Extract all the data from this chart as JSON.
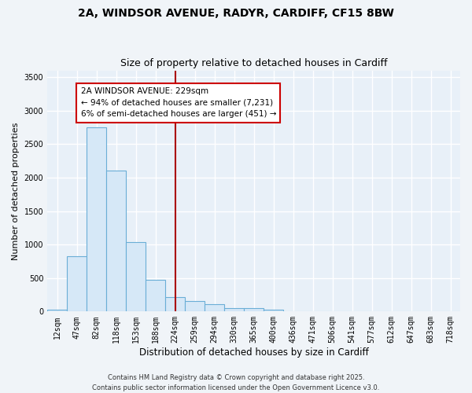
{
  "title_line1": "2A, WINDSOR AVENUE, RADYR, CARDIFF, CF15 8BW",
  "title_line2": "Size of property relative to detached houses in Cardiff",
  "xlabel": "Distribution of detached houses by size in Cardiff",
  "ylabel": "Number of detached properties",
  "bar_color": "#d6e8f7",
  "bar_edgecolor": "#6aaed6",
  "bar_linewidth": 0.8,
  "background_color": "#e8f0f8",
  "fig_background": "#f0f4f8",
  "grid_color": "#ffffff",
  "vline_color": "#aa0000",
  "annotation_text": "2A WINDSOR AVENUE: 229sqm\n← 94% of detached houses are smaller (7,231)\n6% of semi-detached houses are larger (451) →",
  "annotation_box_color": "#ffffff",
  "annotation_box_edgecolor": "#cc0000",
  "categories": [
    "12sqm",
    "47sqm",
    "82sqm",
    "118sqm",
    "153sqm",
    "188sqm",
    "224sqm",
    "259sqm",
    "294sqm",
    "330sqm",
    "365sqm",
    "400sqm",
    "436sqm",
    "471sqm",
    "506sqm",
    "541sqm",
    "577sqm",
    "612sqm",
    "647sqm",
    "683sqm",
    "718sqm"
  ],
  "values": [
    30,
    830,
    2750,
    2100,
    1040,
    470,
    210,
    155,
    110,
    50,
    45,
    25,
    5,
    5,
    0,
    0,
    0,
    0,
    0,
    0,
    0
  ],
  "ylim": [
    0,
    3600
  ],
  "yticks": [
    0,
    500,
    1000,
    1500,
    2000,
    2500,
    3000,
    3500
  ],
  "footer_text": "Contains HM Land Registry data © Crown copyright and database right 2025.\nContains public sector information licensed under the Open Government Licence v3.0.",
  "title_fontsize": 10,
  "subtitle_fontsize": 9,
  "tick_fontsize": 7,
  "ylabel_fontsize": 8,
  "xlabel_fontsize": 8.5,
  "footer_fontsize": 6,
  "annot_fontsize": 7.5
}
